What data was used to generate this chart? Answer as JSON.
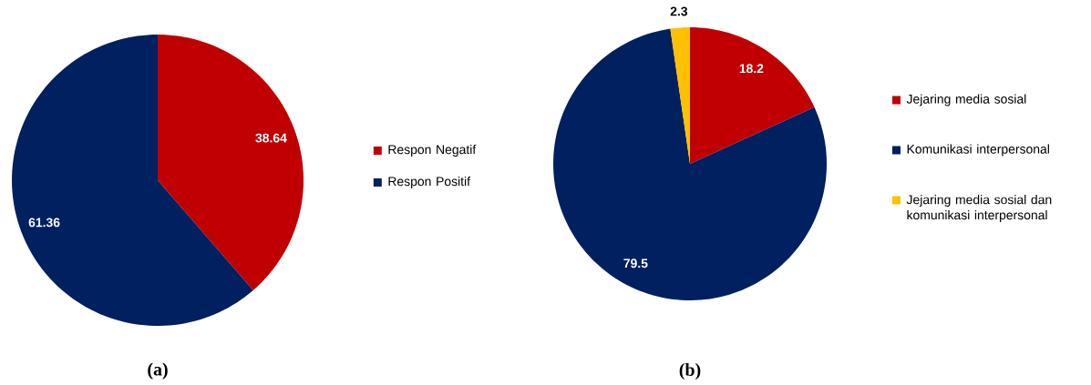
{
  "chart_data": [
    {
      "type": "pie",
      "title": "(a)",
      "categories": [
        "Respon Negatif",
        "Respon Positif"
      ],
      "values": [
        38.64,
        61.36
      ],
      "colors": [
        "#c00000",
        "#002060"
      ],
      "data_labels": true,
      "legend": "right"
    },
    {
      "type": "pie",
      "title": "(b)",
      "categories": [
        "Jejaring media sosial",
        "Komunikasi interpersonal",
        "Jejaring media sosial dan komunikasi interpersonal"
      ],
      "values": [
        18.2,
        79.5,
        2.3
      ],
      "colors": [
        "#c00000",
        "#002060",
        "#ffc000"
      ],
      "data_labels": true,
      "legend": "right"
    }
  ]
}
